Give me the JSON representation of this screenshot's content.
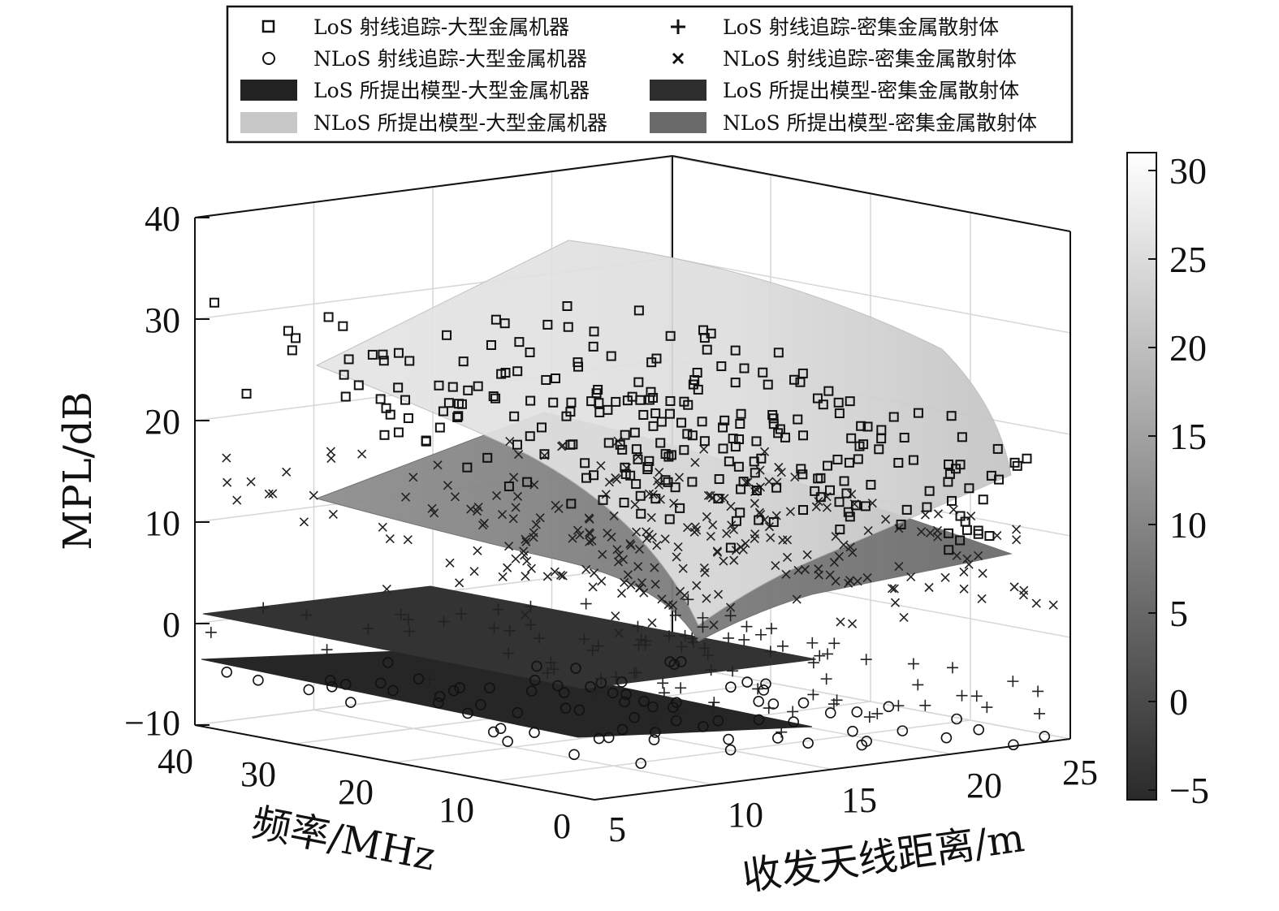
{
  "chart_data": {
    "type": "scatter3d",
    "zlabel": "MPL/dB",
    "xlabel": "收发天线距离/m",
    "ylabel": "频率/MHz",
    "zlim": [
      -10,
      40
    ],
    "xlim": [
      5,
      25
    ],
    "ylim": [
      0,
      40
    ],
    "z_ticks": [
      "40",
      "30",
      "20",
      "10",
      "0",
      "−10"
    ],
    "x_ticks": [
      "5",
      "10",
      "15",
      "20",
      "25"
    ],
    "y_ticks": [
      "40",
      "30",
      "20",
      "10",
      "0"
    ],
    "grid": true,
    "colorbar": {
      "range": [
        -5,
        31
      ],
      "ticks": [
        "30",
        "25",
        "20",
        "15",
        "10",
        "5",
        "0",
        "−5"
      ],
      "colormap": "gray",
      "color_low": "#2a2a2a",
      "color_high": "#ffffff"
    },
    "legend": {
      "placement": "top",
      "entries": [
        {
          "label": "LoS 射线追踪-大型金属机器",
          "marker": "square"
        },
        {
          "label": "LoS 射线追踪-密集金属散射体",
          "marker": "plus"
        },
        {
          "label": "NLoS 射线追踪-大型金属机器",
          "marker": "circle"
        },
        {
          "label": "NLoS 射线追踪-密集金属散射体",
          "marker": "cross"
        },
        {
          "label": "LoS 所提出模型-大型金属机器",
          "marker": "patch",
          "color": "#222222"
        },
        {
          "label": "LoS 所提出模型-密集金属散射体",
          "marker": "patch",
          "color": "#2e2e2e"
        },
        {
          "label": "NLoS 所提出模型-大型金属机器",
          "marker": "patch",
          "color": "#c8c8c8"
        },
        {
          "label": "NLoS 所提出模型-密集金属散射体",
          "marker": "patch",
          "color": "#6a6a6a"
        }
      ]
    },
    "surfaces": [
      {
        "name": "LoS 所提出模型-大型金属机器",
        "z_at_d5": -4,
        "z_at_d25": -10,
        "freq_slope": 0.05
      },
      {
        "name": "LoS 所提出模型-密集金属散射体",
        "z_at_d5": 1,
        "z_at_d25": -5,
        "freq_slope": 0.05
      },
      {
        "name": "NLoS 所提出模型-密集金属散射体",
        "z_at_d5": 12,
        "z_at_d25": 8,
        "freq_slope": 0.12
      },
      {
        "name": "NLoS 所提出模型-大型金属机器",
        "z_at_d5": 26,
        "z_at_d25": 17,
        "freq_slope": 0.3
      }
    ]
  }
}
